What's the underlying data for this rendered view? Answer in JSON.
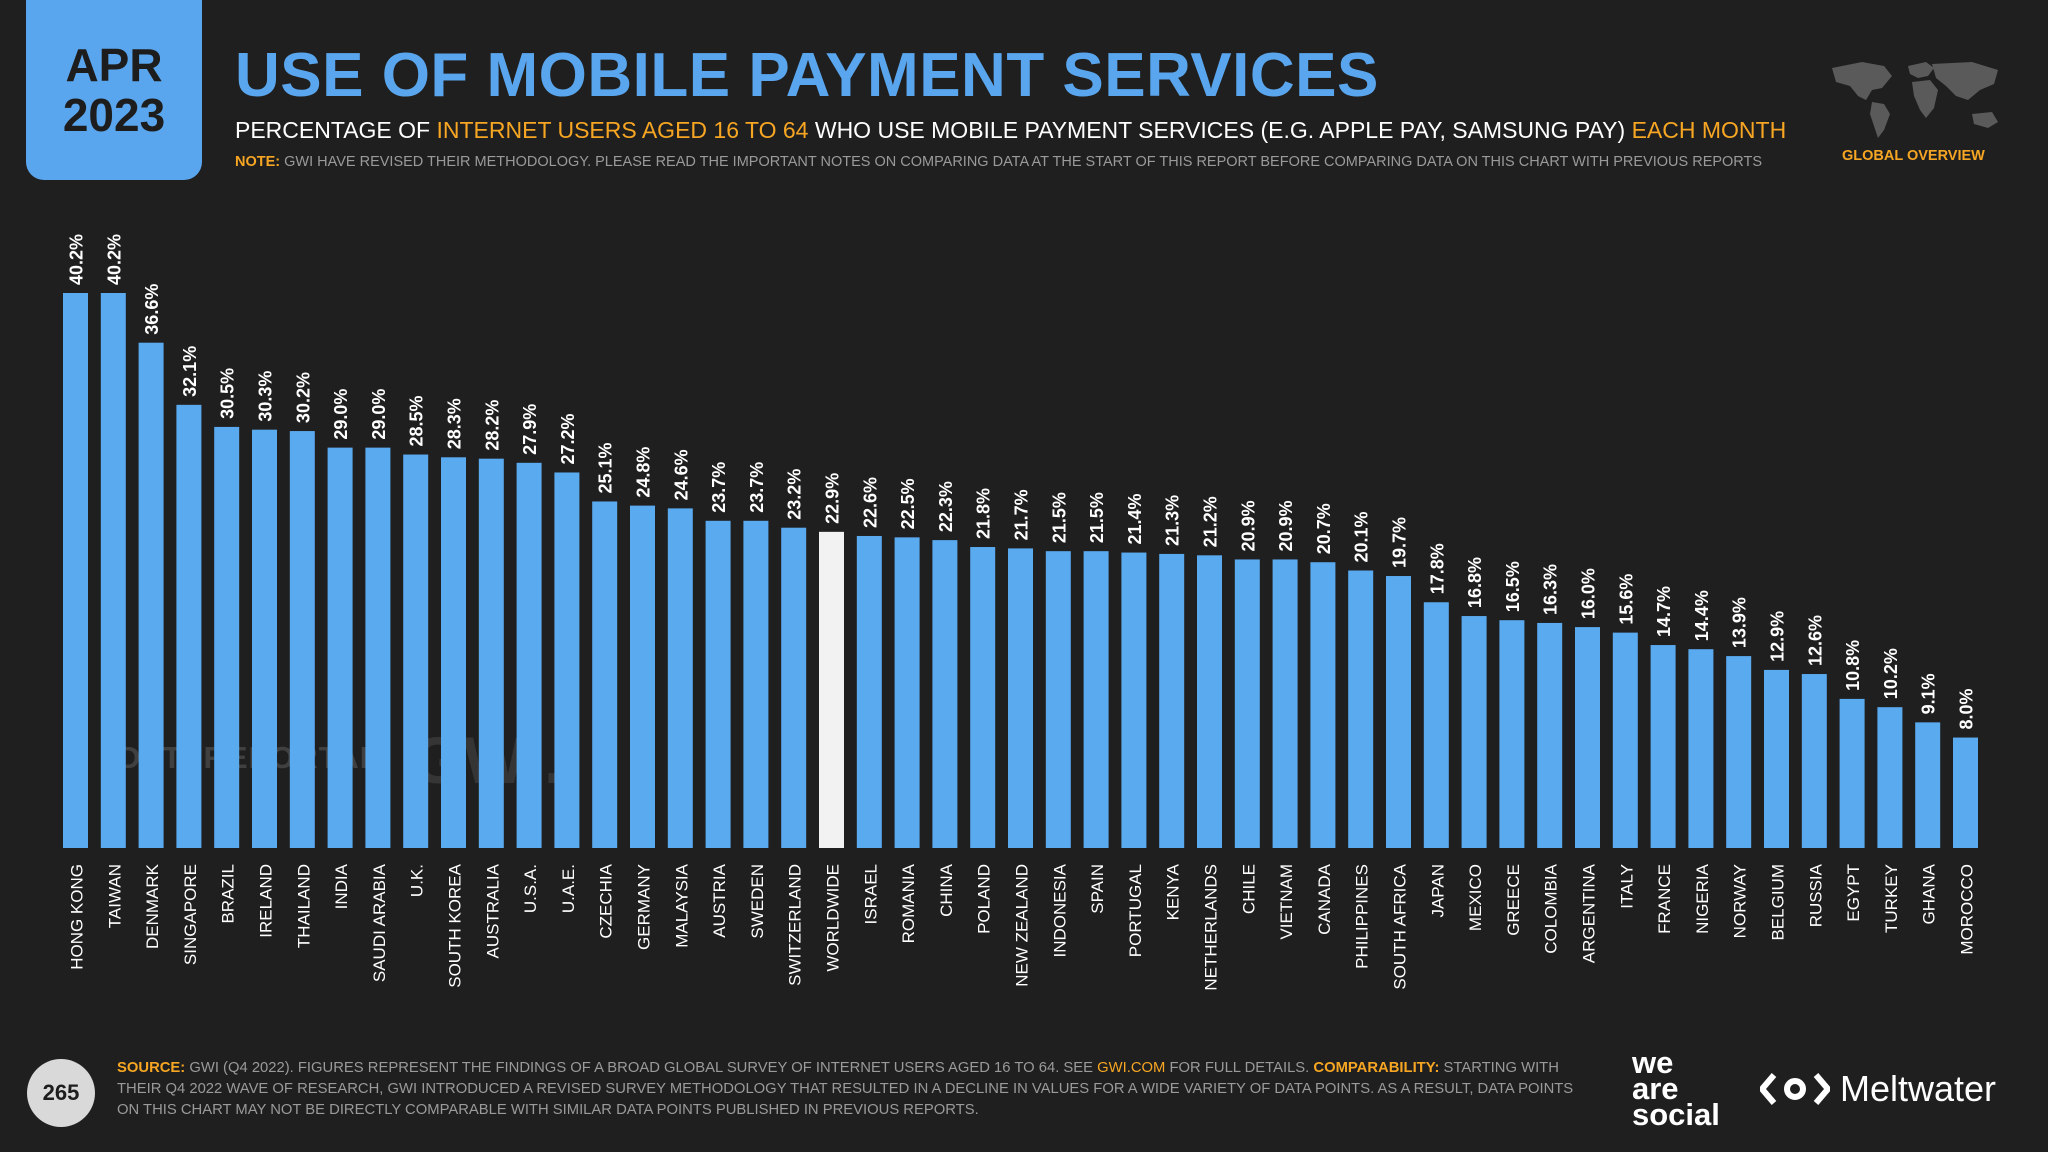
{
  "header": {
    "month": "APR",
    "year": "2023",
    "title": "USE OF MOBILE PAYMENT SERVICES",
    "subtitle_1": "PERCENTAGE OF ",
    "subtitle_hl_1": "INTERNET USERS AGED 16 TO 64",
    "subtitle_2": " WHO USE MOBILE PAYMENT SERVICES (E.G. APPLE PAY, SAMSUNG PAY) ",
    "subtitle_hl_2": "EACH MONTH",
    "note_label": "NOTE:",
    "note_text": " GWI HAVE REVISED THEIR METHODOLOGY. PLEASE READ THE IMPORTANT NOTES ON COMPARING DATA AT THE START OF THIS REPORT BEFORE COMPARING DATA ON THIS CHART WITH PREVIOUS REPORTS",
    "section_label": "GLOBAL OVERVIEW",
    "map_icon": "world-map-icon"
  },
  "watermarks": {
    "datareportal": "DATAREPORTAL",
    "gwi": "GWI."
  },
  "chart_data": {
    "type": "bar",
    "title": "USE OF MOBILE PAYMENT SERVICES",
    "xlabel": "",
    "ylabel": "",
    "ylim": [
      0,
      45
    ],
    "grid": false,
    "value_suffix": "%",
    "categories": [
      "HONG KONG",
      "TAIWAN",
      "DENMARK",
      "SINGAPORE",
      "BRAZIL",
      "IRELAND",
      "THAILAND",
      "INDIA",
      "SAUDI ARABIA",
      "U.K.",
      "SOUTH KOREA",
      "AUSTRALIA",
      "U.S.A.",
      "U.A.E.",
      "CZECHIA",
      "GERMANY",
      "MALAYSIA",
      "AUSTRIA",
      "SWEDEN",
      "SWITZERLAND",
      "WORLDWIDE",
      "ISRAEL",
      "ROMANIA",
      "CHINA",
      "POLAND",
      "NEW ZEALAND",
      "INDONESIA",
      "SPAIN",
      "PORTUGAL",
      "KENYA",
      "NETHERLANDS",
      "CHILE",
      "VIETNAM",
      "CANADA",
      "PHILIPPINES",
      "SOUTH AFRICA",
      "JAPAN",
      "MEXICO",
      "GREECE",
      "COLOMBIA",
      "ARGENTINA",
      "ITALY",
      "FRANCE",
      "NIGERIA",
      "NORWAY",
      "BELGIUM",
      "RUSSIA",
      "EGYPT",
      "TURKEY",
      "GHANA",
      "MOROCCO"
    ],
    "values": [
      40.2,
      40.2,
      36.6,
      32.1,
      30.5,
      30.3,
      30.2,
      29.0,
      29.0,
      28.5,
      28.3,
      28.2,
      27.9,
      27.2,
      25.1,
      24.8,
      24.6,
      23.7,
      23.7,
      23.2,
      22.9,
      22.6,
      22.5,
      22.3,
      21.8,
      21.7,
      21.5,
      21.5,
      21.4,
      21.3,
      21.2,
      20.9,
      20.9,
      20.7,
      20.1,
      19.7,
      17.8,
      16.8,
      16.5,
      16.3,
      16.0,
      15.6,
      14.7,
      14.4,
      13.9,
      12.9,
      12.6,
      10.8,
      10.2,
      9.1,
      8.0
    ],
    "labels": [
      "40.2%",
      "40.2%",
      "36.6%",
      "32.1%",
      "30.5%",
      "30.3%",
      "30.2%",
      "29.0%",
      "29.0%",
      "28.5%",
      "28.3%",
      "28.2%",
      "27.9%",
      "27.2%",
      "25.1%",
      "24.8%",
      "24.6%",
      "23.7%",
      "23.7%",
      "23.2%",
      "22.9%",
      "22.6%",
      "22.5%",
      "22.3%",
      "21.8%",
      "21.7%",
      "21.5%",
      "21.5%",
      "21.4%",
      "21.3%",
      "21.2%",
      "20.9%",
      "20.9%",
      "20.7%",
      "20.1%",
      "19.7%",
      "17.8%",
      "16.8%",
      "16.5%",
      "16.3%",
      "16.0%",
      "15.6%",
      "14.7%",
      "14.4%",
      "13.9%",
      "12.9%",
      "12.6%",
      "10.8%",
      "10.2%",
      "9.1%",
      "8.0%"
    ],
    "highlight_category": "WORLDWIDE",
    "bar_color": "#5aaaf0",
    "highlight_color": "#f2f2f2"
  },
  "footer": {
    "page_number": "265",
    "source_label": "SOURCE:",
    "source_text": " GWI (Q4 2022). FIGURES REPRESENT THE FINDINGS OF A BROAD GLOBAL SURVEY OF INTERNET USERS AGED 16 TO 64. SEE ",
    "source_link": "GWI.COM",
    "source_text_2": " FOR FULL DETAILS. ",
    "comparability_label": "COMPARABILITY:",
    "comparability_text": " STARTING WITH THEIR Q4 2022 WAVE OF RESEARCH, GWI INTRODUCED A REVISED SURVEY METHODOLOGY THAT RESULTED IN A DECLINE IN VALUES FOR A WIDE VARIETY OF DATA POINTS. AS A RESULT, DATA POINTS ON THIS CHART MAY NOT BE DIRECTLY COMPARABLE WITH SIMILAR DATA POINTS PUBLISHED IN PREVIOUS REPORTS.",
    "brand_1_line_1": "we",
    "brand_1_line_2": "are",
    "brand_1_line_3": "social",
    "brand_2": "Meltwater"
  },
  "colors": {
    "accent": "#5aa6ee",
    "highlight_text": "#f6a623",
    "background": "#201f1f"
  }
}
